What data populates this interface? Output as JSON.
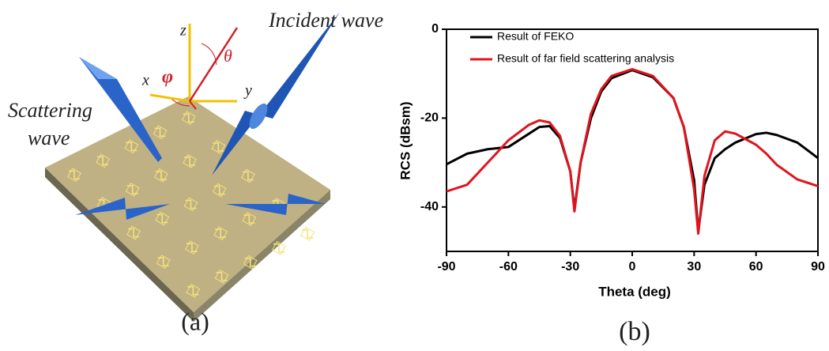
{
  "diagram": {
    "incident": "Incident wave",
    "scattering_1": "Scattering",
    "scattering_2": "wave",
    "z": "z",
    "x": "x",
    "y": "y",
    "theta": "θ",
    "phi": "φ",
    "caption": "(a)"
  },
  "chart_data": {
    "type": "line",
    "caption": "(b)",
    "xlabel": "Theta (deg)",
    "ylabel": "RCS (dBsm)",
    "x": [
      -90,
      -80,
      -70,
      -60,
      -50,
      -45,
      -40,
      -35,
      -30,
      -28,
      -25,
      -20,
      -15,
      -10,
      0,
      10,
      20,
      25,
      30,
      32,
      35,
      40,
      45,
      50,
      60,
      65,
      70,
      80,
      90
    ],
    "series": [
      {
        "name": "Result of FEKO",
        "color": "#000000",
        "values": [
          -30.4,
          -28,
          -27,
          -26.5,
          -23.5,
          -22,
          -21.8,
          -24.5,
          -32,
          -40.5,
          -30,
          -20,
          -14,
          -11,
          -9.2,
          -10.8,
          -15.5,
          -22,
          -34,
          -45.5,
          -35,
          -29,
          -27,
          -25.5,
          -23.6,
          -23.3,
          -23.8,
          -25.5,
          -29
        ]
      },
      {
        "name": "Result of far field scattering analysis",
        "color": "#e0141e",
        "values": [
          -36.5,
          -35,
          -30,
          -25,
          -21.5,
          -20.5,
          -21,
          -24,
          -32,
          -41,
          -30,
          -19,
          -13.5,
          -10.5,
          -9,
          -10.5,
          -15.5,
          -22,
          -36,
          -46,
          -33,
          -25,
          -23,
          -23.5,
          -26,
          -28,
          -30.5,
          -33.8,
          -35.3
        ]
      }
    ],
    "xlim": [
      -90,
      90
    ],
    "xticks": [
      -90,
      -60,
      -30,
      0,
      30,
      60,
      90
    ],
    "ylim": [
      -50,
      0
    ],
    "yticks": [
      0,
      -20,
      -40
    ]
  }
}
